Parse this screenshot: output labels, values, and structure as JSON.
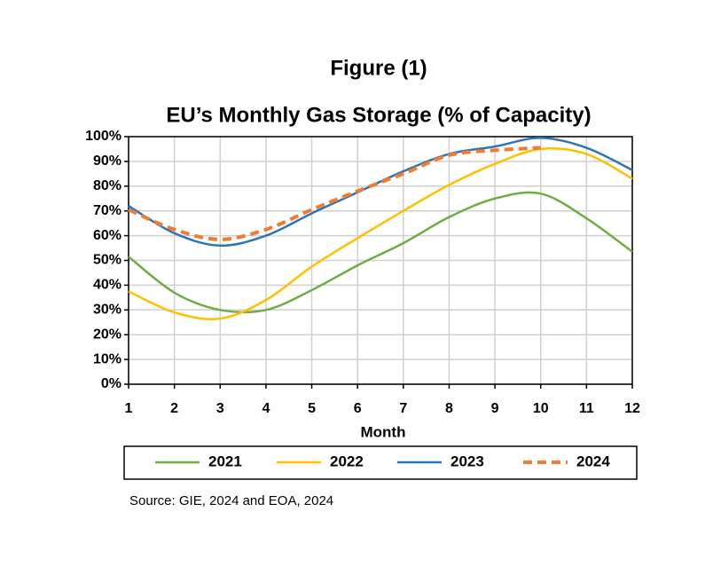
{
  "chart_data": {
    "type": "line",
    "figure_label": "Figure (1)",
    "title": "EU’s Monthly Gas Storage (% of Capacity)",
    "x_label": "Month",
    "source": "Source: GIE, 2024 and EOA, 2024",
    "x": [
      1,
      2,
      3,
      4,
      5,
      6,
      7,
      8,
      9,
      10,
      11,
      12
    ],
    "xlim": [
      1,
      12
    ],
    "xticks": [
      1,
      2,
      3,
      4,
      5,
      6,
      7,
      8,
      9,
      10,
      11,
      12
    ],
    "ylim": [
      0,
      100
    ],
    "yticks": [
      {
        "value": 0,
        "label": "0%"
      },
      {
        "value": 10,
        "label": "10%"
      },
      {
        "value": 20,
        "label": "20%"
      },
      {
        "value": 30,
        "label": "30%"
      },
      {
        "value": 40,
        "label": "40%"
      },
      {
        "value": 50,
        "label": "50%"
      },
      {
        "value": 60,
        "label": "60%"
      },
      {
        "value": 70,
        "label": "70%"
      },
      {
        "value": 80,
        "label": "80%"
      },
      {
        "value": 90,
        "label": "90%"
      },
      {
        "value": 100,
        "label": "100%"
      }
    ],
    "grid": true,
    "legend": "bottom",
    "series": [
      {
        "name": "2021",
        "color": "#70ad47",
        "dashed": false,
        "values": [
          51.5,
          37,
          30,
          30,
          38,
          48,
          57,
          67.5,
          75,
          77,
          67,
          53.5
        ]
      },
      {
        "name": "2022",
        "color": "#ffc000",
        "dashed": false,
        "values": [
          37.5,
          29,
          26.5,
          34,
          47.5,
          59,
          70,
          80.5,
          89,
          95,
          93,
          83
        ]
      },
      {
        "name": "2023",
        "color": "#2e75b6",
        "dashed": false,
        "values": [
          72,
          61,
          56,
          60,
          69,
          77.5,
          86,
          93,
          96,
          99.5,
          95.5,
          86.5
        ]
      },
      {
        "name": "2024",
        "color": "#ed7d31",
        "dashed": true,
        "values": [
          70.5,
          62.5,
          58.5,
          62.5,
          70.5,
          78,
          85,
          92.5,
          94.5,
          95.5,
          null,
          null
        ]
      }
    ]
  }
}
